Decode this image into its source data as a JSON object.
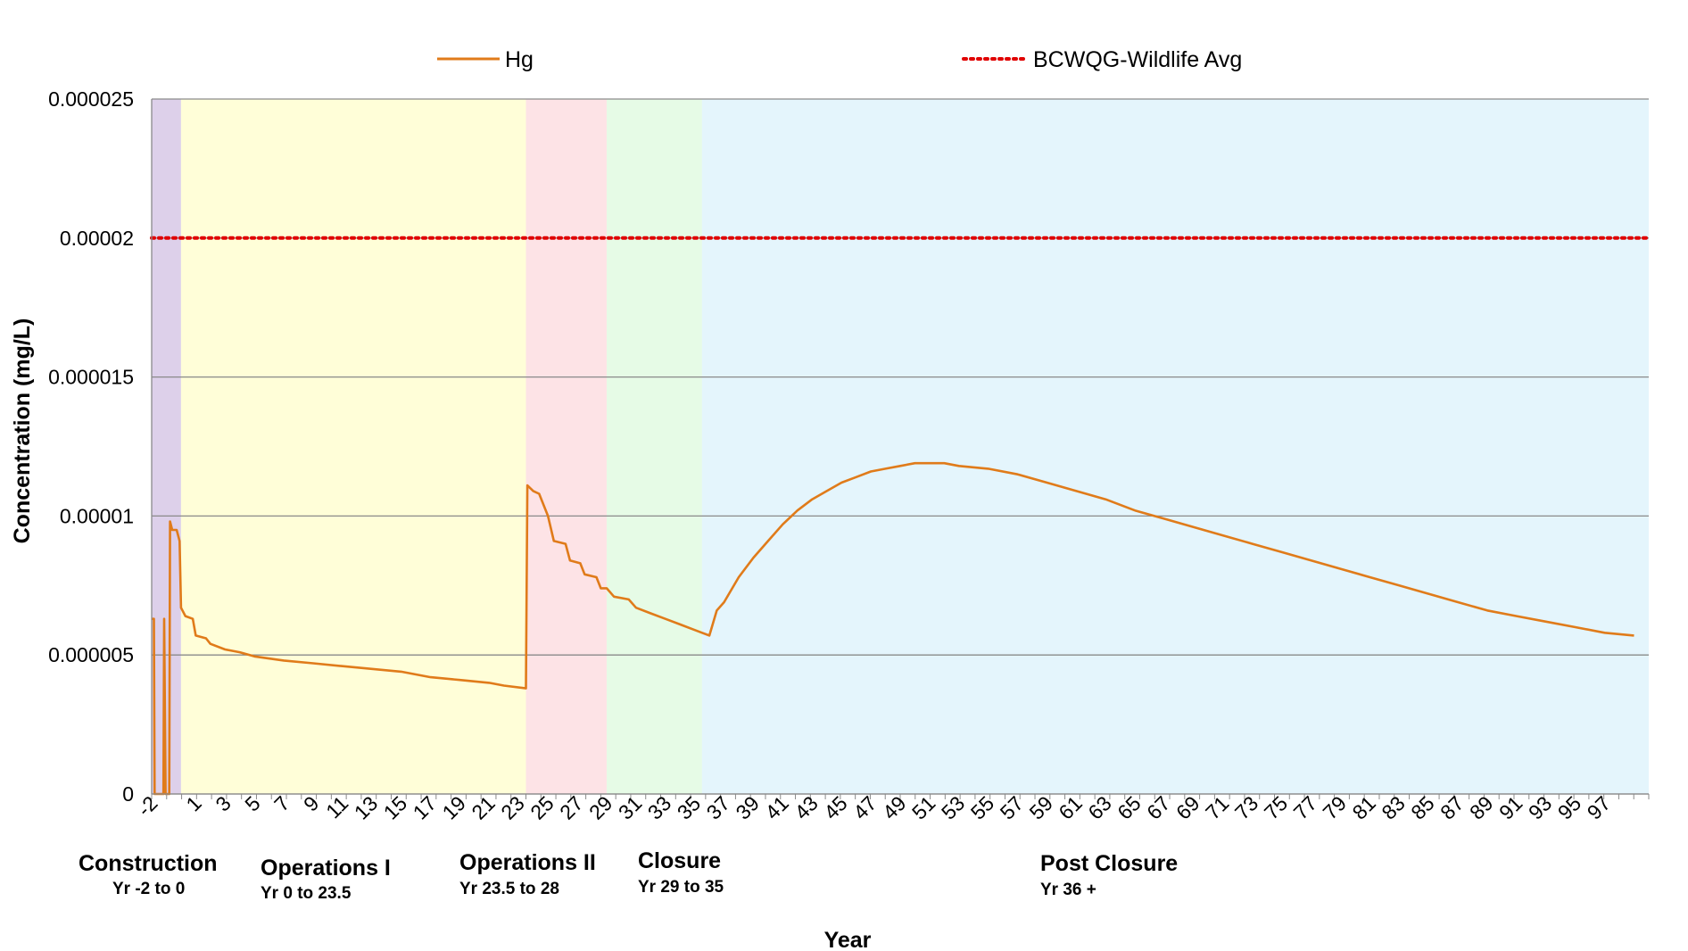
{
  "chart_data": {
    "type": "line",
    "title": "",
    "xlabel": "Year",
    "ylabel": "Concentration (mg/L)",
    "xlim": [
      -2,
      100
    ],
    "ylim": [
      0,
      2.5e-05
    ],
    "y_ticks": [
      "0",
      "0.000005",
      "0.00001",
      "0.000015",
      "0.00002",
      "0.000025"
    ],
    "x_tick_labels": [
      "-2",
      "1",
      "3",
      "5",
      "7",
      "9",
      "11",
      "13",
      "15",
      "17",
      "19",
      "21",
      "23",
      "25",
      "27",
      "29",
      "31",
      "33",
      "35",
      "37",
      "39",
      "41",
      "43",
      "45",
      "47",
      "49",
      "51",
      "53",
      "55",
      "57",
      "59",
      "61",
      "63",
      "65",
      "67",
      "69",
      "71",
      "73",
      "75",
      "77",
      "79",
      "81",
      "83",
      "85",
      "87",
      "89",
      "91",
      "93",
      "95",
      "97"
    ],
    "grid": "horizontal",
    "legend_position": "top",
    "legend": [
      {
        "label": "Hg",
        "color": "#e07b1a",
        "style": "solid"
      },
      {
        "label": "BCWQG-Wildlife Avg",
        "color": "#e00000",
        "style": "dotted"
      }
    ],
    "phases": [
      {
        "name": "Construction",
        "range": "Yr -2 to 0",
        "start": -2,
        "end": 0,
        "color": "#ddd0ea"
      },
      {
        "name": "Operations I",
        "range": "Yr 0 to 23.5",
        "start": 0,
        "end": 23.5,
        "color": "#fffed8"
      },
      {
        "name": "Operations II",
        "range": "Yr 23.5 to 28",
        "start": 23.5,
        "end": 29,
        "color": "#fde3e6"
      },
      {
        "name": "Closure",
        "range": "Yr 29 to 35",
        "start": 29,
        "end": 35.5,
        "color": "#e6fbe6"
      },
      {
        "name": "Post Closure",
        "range": "Yr 36 +",
        "start": 35.5,
        "end": 100,
        "color": "#e4f5fc"
      }
    ],
    "series": [
      {
        "name": "Hg",
        "color": "#e07b1a",
        "points": [
          [
            -2,
            6.3e-06
          ],
          [
            -1.85,
            6.3e-06
          ],
          [
            -1.8,
            0
          ],
          [
            -1.2,
            0
          ],
          [
            -1.15,
            6.3e-06
          ],
          [
            -1.05,
            0
          ],
          [
            -0.8,
            0
          ],
          [
            -0.75,
            9.8e-06
          ],
          [
            -0.6,
            9.5e-06
          ],
          [
            -0.3,
            9.5e-06
          ],
          [
            -0.1,
            9.1e-06
          ],
          [
            0,
            6.7e-06
          ],
          [
            0.3,
            6.4e-06
          ],
          [
            0.8,
            6.3e-06
          ],
          [
            1,
            5.7e-06
          ],
          [
            1.7,
            5.6e-06
          ],
          [
            2,
            5.4e-06
          ],
          [
            3,
            5.2e-06
          ],
          [
            4,
            5.1e-06
          ],
          [
            5,
            4.95e-06
          ],
          [
            7,
            4.8e-06
          ],
          [
            9,
            4.7e-06
          ],
          [
            11,
            4.6e-06
          ],
          [
            13,
            4.5e-06
          ],
          [
            15,
            4.4e-06
          ],
          [
            17,
            4.2e-06
          ],
          [
            19,
            4.1e-06
          ],
          [
            21,
            4e-06
          ],
          [
            22,
            3.9e-06
          ],
          [
            23.5,
            3.8e-06
          ],
          [
            23.6,
            1.11e-05
          ],
          [
            24,
            1.09e-05
          ],
          [
            24.4,
            1.08e-05
          ],
          [
            25,
            1e-05
          ],
          [
            25.4,
            9.1e-06
          ],
          [
            26.2,
            9e-06
          ],
          [
            26.5,
            8.4e-06
          ],
          [
            27.2,
            8.3e-06
          ],
          [
            27.5,
            7.9e-06
          ],
          [
            28.3,
            7.8e-06
          ],
          [
            28.6,
            7.4e-06
          ],
          [
            29,
            7.4e-06
          ],
          [
            29.5,
            7.1e-06
          ],
          [
            30.5,
            7e-06
          ],
          [
            31,
            6.7e-06
          ],
          [
            32,
            6.5e-06
          ],
          [
            33,
            6.3e-06
          ],
          [
            34,
            6.1e-06
          ],
          [
            35,
            5.9e-06
          ],
          [
            35.5,
            5.8e-06
          ],
          [
            36,
            5.7e-06
          ],
          [
            36.5,
            6.6e-06
          ],
          [
            37,
            6.9e-06
          ],
          [
            38,
            7.8e-06
          ],
          [
            39,
            8.5e-06
          ],
          [
            40,
            9.1e-06
          ],
          [
            41,
            9.7e-06
          ],
          [
            42,
            1.02e-05
          ],
          [
            43,
            1.06e-05
          ],
          [
            44,
            1.09e-05
          ],
          [
            45,
            1.12e-05
          ],
          [
            46,
            1.14e-05
          ],
          [
            47,
            1.16e-05
          ],
          [
            48,
            1.17e-05
          ],
          [
            49,
            1.18e-05
          ],
          [
            50,
            1.19e-05
          ],
          [
            51,
            1.19e-05
          ],
          [
            52,
            1.19e-05
          ],
          [
            53,
            1.18e-05
          ],
          [
            55,
            1.17e-05
          ],
          [
            57,
            1.15e-05
          ],
          [
            59,
            1.12e-05
          ],
          [
            61,
            1.09e-05
          ],
          [
            63,
            1.06e-05
          ],
          [
            65,
            1.02e-05
          ],
          [
            67,
            9.9e-06
          ],
          [
            69,
            9.6e-06
          ],
          [
            71,
            9.3e-06
          ],
          [
            73,
            9e-06
          ],
          [
            75,
            8.7e-06
          ],
          [
            77,
            8.4e-06
          ],
          [
            79,
            8.1e-06
          ],
          [
            81,
            7.8e-06
          ],
          [
            83,
            7.5e-06
          ],
          [
            85,
            7.2e-06
          ],
          [
            87,
            6.9e-06
          ],
          [
            89,
            6.6e-06
          ],
          [
            91,
            6.4e-06
          ],
          [
            93,
            6.2e-06
          ],
          [
            95,
            6e-06
          ],
          [
            97,
            5.8e-06
          ],
          [
            99,
            5.7e-06
          ]
        ]
      },
      {
        "name": "BCWQG-Wildlife Avg",
        "color": "#e00000",
        "points": [
          [
            -2,
            2e-05
          ],
          [
            100,
            2e-05
          ]
        ]
      }
    ]
  }
}
